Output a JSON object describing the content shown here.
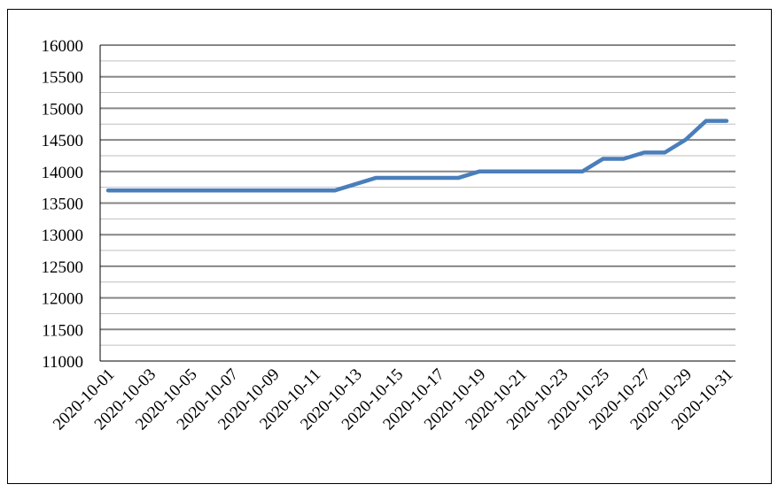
{
  "chart_data": {
    "type": "line",
    "title": "",
    "xlabel": "",
    "ylabel": "",
    "ylim": [
      11000,
      16000
    ],
    "y_major_step": 500,
    "y_minor_step": 250,
    "grid": true,
    "legend": "none",
    "line_color": "#4a7ebb",
    "x": [
      "2020-10-01",
      "2020-10-02",
      "2020-10-03",
      "2020-10-04",
      "2020-10-05",
      "2020-10-06",
      "2020-10-07",
      "2020-10-08",
      "2020-10-09",
      "2020-10-10",
      "2020-10-11",
      "2020-10-12",
      "2020-10-13",
      "2020-10-14",
      "2020-10-15",
      "2020-10-16",
      "2020-10-17",
      "2020-10-18",
      "2020-10-19",
      "2020-10-20",
      "2020-10-21",
      "2020-10-22",
      "2020-10-23",
      "2020-10-24",
      "2020-10-25",
      "2020-10-26",
      "2020-10-27",
      "2020-10-28",
      "2020-10-29",
      "2020-10-30",
      "2020-10-31"
    ],
    "values": [
      13700,
      13700,
      13700,
      13700,
      13700,
      13700,
      13700,
      13700,
      13700,
      13700,
      13700,
      13700,
      13800,
      13900,
      13900,
      13900,
      13900,
      13900,
      14000,
      14000,
      14000,
      14000,
      14000,
      14000,
      14200,
      14200,
      14300,
      14300,
      14500,
      14800,
      14800
    ],
    "x_tick_labels": [
      "2020-10-01",
      "2020-10-03",
      "2020-10-05",
      "2020-10-07",
      "2020-10-09",
      "2020-10-11",
      "2020-10-13",
      "2020-10-15",
      "2020-10-17",
      "2020-10-19",
      "2020-10-21",
      "2020-10-23",
      "2020-10-25",
      "2020-10-27",
      "2020-10-29",
      "2020-10-31"
    ],
    "y_tick_labels": [
      "11000",
      "11500",
      "12000",
      "12500",
      "13000",
      "13500",
      "14000",
      "14500",
      "15000",
      "15500",
      "16000"
    ]
  }
}
